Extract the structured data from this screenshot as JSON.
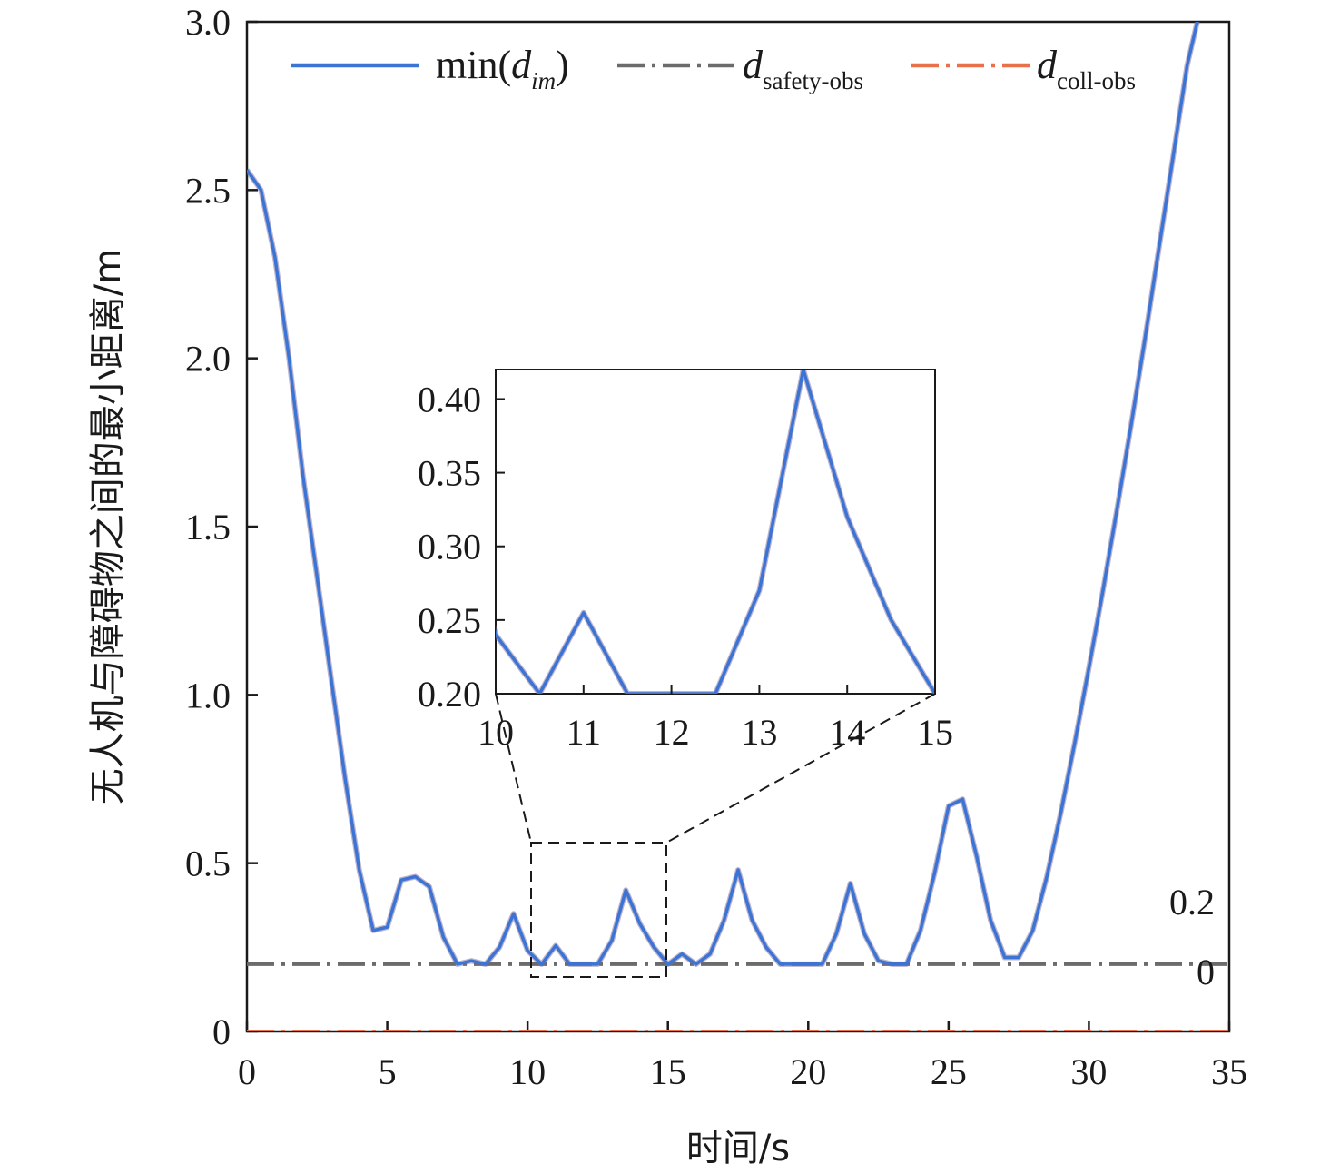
{
  "chart_data": {
    "type": "line",
    "xlabel": "时间/s",
    "ylabel": "无人机与障碍物之间的最小距离/m",
    "xlim": [
      0,
      35
    ],
    "ylim": [
      0,
      3.0
    ],
    "xticks": [
      "0",
      "5",
      "10",
      "15",
      "20",
      "25",
      "30",
      "35"
    ],
    "yticks": [
      "0",
      "0.5",
      "1.0",
      "1.5",
      "2.0",
      "2.5",
      "3.0"
    ],
    "grid": false,
    "legend_position": "top",
    "legend": [
      {
        "base": "min(",
        "italic": "d",
        "sub": "im",
        "suffix": ")"
      },
      {
        "base": "",
        "italic": "d",
        "sub": "safety-obs",
        "suffix": ""
      },
      {
        "base": "",
        "italic": "d",
        "sub": "coll-obs",
        "suffix": ""
      }
    ],
    "annotations": {
      "safety_value_label": "0.2",
      "coll_value_label": "0"
    },
    "colors": {
      "min_dim": "#3b74d4",
      "safety": "#6b6b6b",
      "coll": "#e8704a",
      "coll_dot": "#e04a8a"
    },
    "series": [
      {
        "x": [
          0,
          0.5,
          1,
          1.5,
          2,
          2.5,
          3,
          3.5,
          4,
          4.5,
          5,
          5.5,
          6,
          6.5,
          7,
          7.5,
          8,
          8.5,
          9,
          9.5,
          10,
          10.5,
          11,
          11.5,
          12,
          12.5,
          13,
          13.5,
          14,
          14.5,
          15,
          15.5,
          16,
          16.5,
          17,
          17.5,
          18,
          18.5,
          19,
          19.5,
          20,
          20.5,
          21,
          21.5,
          22,
          22.5,
          23,
          23.5,
          24,
          24.5,
          25,
          25.5,
          26,
          26.5,
          27,
          27.5,
          28,
          28.5,
          29,
          29.5,
          30,
          30.5,
          31,
          31.5,
          32,
          32.5,
          33,
          33.5,
          34
        ],
        "y": [
          2.56,
          2.5,
          2.3,
          2.0,
          1.65,
          1.35,
          1.05,
          0.75,
          0.48,
          0.3,
          0.31,
          0.45,
          0.46,
          0.43,
          0.28,
          0.2,
          0.21,
          0.2,
          0.25,
          0.35,
          0.24,
          0.2,
          0.255,
          0.2,
          0.2,
          0.2,
          0.27,
          0.42,
          0.32,
          0.25,
          0.2,
          0.23,
          0.2,
          0.23,
          0.33,
          0.48,
          0.33,
          0.25,
          0.2,
          0.2,
          0.2,
          0.2,
          0.29,
          0.44,
          0.29,
          0.21,
          0.2,
          0.2,
          0.3,
          0.47,
          0.67,
          0.69,
          0.52,
          0.33,
          0.22,
          0.22,
          0.3,
          0.46,
          0.65,
          0.86,
          1.08,
          1.31,
          1.55,
          1.8,
          2.06,
          2.33,
          2.6,
          2.87,
          3.05
        ]
      },
      {
        "x": [
          0,
          35
        ],
        "y": [
          0.2,
          0.2
        ]
      },
      {
        "x": [
          0,
          35
        ],
        "y": [
          0,
          0
        ]
      }
    ],
    "inset": {
      "xlim": [
        10,
        15
      ],
      "ylim": [
        0.2,
        0.42
      ],
      "xticks": [
        "10",
        "11",
        "12",
        "13",
        "14",
        "15"
      ],
      "yticks": [
        "0.20",
        "0.25",
        "0.30",
        "0.35",
        "0.40"
      ]
    }
  }
}
